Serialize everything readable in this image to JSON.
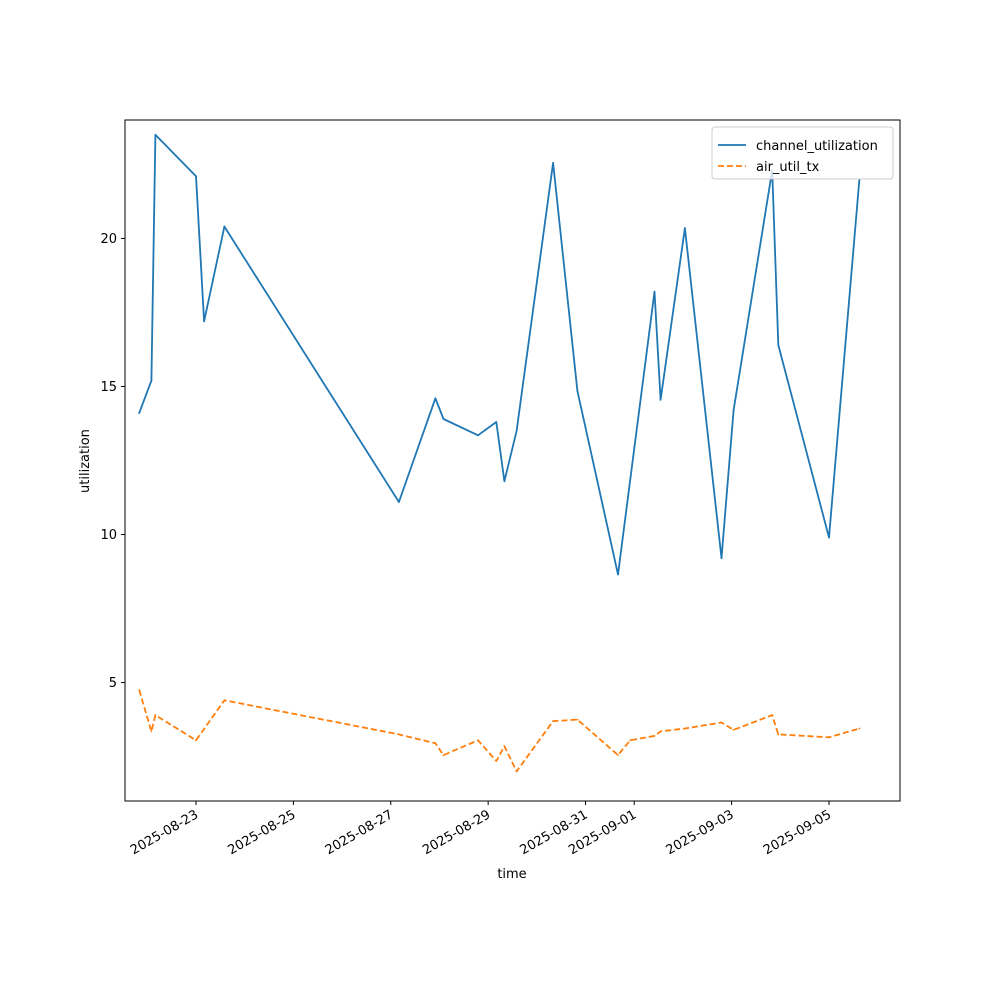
{
  "chart_data": {
    "type": "line",
    "title": "",
    "xlabel": "time",
    "ylabel": "utilization",
    "x_axis_type": "datetime",
    "xlim": [
      "2025-08-21 13:00",
      "2025-09-06 11:00"
    ],
    "ylim": [
      1.0,
      24.0
    ],
    "x_tick_labels": [
      "2025-08-23",
      "2025-08-25",
      "2025-08-27",
      "2025-08-29",
      "2025-08-31",
      "2025-09-01",
      "2025-09-03",
      "2025-09-05"
    ],
    "y_ticks": [
      5,
      10,
      15,
      20
    ],
    "grid": false,
    "legend_position": "top-right",
    "series": [
      {
        "name": "channel_utilization",
        "color": "#1f77b4",
        "style": "solid",
        "x": [
          "2025-08-21 20:00",
          "2025-08-22 02:00",
          "2025-08-22 04:00",
          "2025-08-23 00:00",
          "2025-08-23 04:00",
          "2025-08-23 14:00",
          "2025-08-27 04:00",
          "2025-08-27 22:00",
          "2025-08-28 02:00",
          "2025-08-28 19:00",
          "2025-08-29 04:00",
          "2025-08-29 08:00",
          "2025-08-29 14:00",
          "2025-08-30 08:00",
          "2025-08-30 20:00",
          "2025-08-31 16:00",
          "2025-09-01 10:00",
          "2025-09-01 13:00",
          "2025-09-02 01:00",
          "2025-09-02 19:00",
          "2025-09-03 01:00",
          "2025-09-03 20:00",
          "2025-09-03 23:00",
          "2025-09-05 00:00",
          "2025-09-05 15:00"
        ],
        "y": [
          14.1,
          15.2,
          23.5,
          22.1,
          17.2,
          20.4,
          11.1,
          14.6,
          13.9,
          13.35,
          13.8,
          11.8,
          13.5,
          22.55,
          14.85,
          8.65,
          18.2,
          14.55,
          20.35,
          9.2,
          14.2,
          22.3,
          16.4,
          9.9,
          22.0
        ]
      },
      {
        "name": "air_util_tx",
        "color": "#ff7f0e",
        "style": "dashed",
        "x": [
          "2025-08-21 20:00",
          "2025-08-22 02:00",
          "2025-08-22 04:00",
          "2025-08-23 00:00",
          "2025-08-23 14:00",
          "2025-08-27 04:00",
          "2025-08-27 22:00",
          "2025-08-28 02:00",
          "2025-08-28 19:00",
          "2025-08-29 04:00",
          "2025-08-29 08:00",
          "2025-08-29 14:00",
          "2025-08-30 08:00",
          "2025-08-30 20:00",
          "2025-08-31 16:00",
          "2025-08-31 22:00",
          "2025-09-01 10:00",
          "2025-09-01 13:00",
          "2025-09-02 01:00",
          "2025-09-02 19:00",
          "2025-09-03 01:00",
          "2025-09-03 20:00",
          "2025-09-03 23:00",
          "2025-09-05 00:00",
          "2025-09-05 15:00"
        ],
        "y": [
          4.75,
          3.35,
          3.9,
          3.05,
          4.4,
          3.25,
          2.95,
          2.55,
          3.05,
          2.35,
          2.85,
          2.0,
          3.7,
          3.75,
          2.55,
          3.05,
          3.2,
          3.35,
          3.45,
          3.65,
          3.4,
          3.9,
          3.25,
          3.15,
          3.45
        ]
      }
    ]
  }
}
